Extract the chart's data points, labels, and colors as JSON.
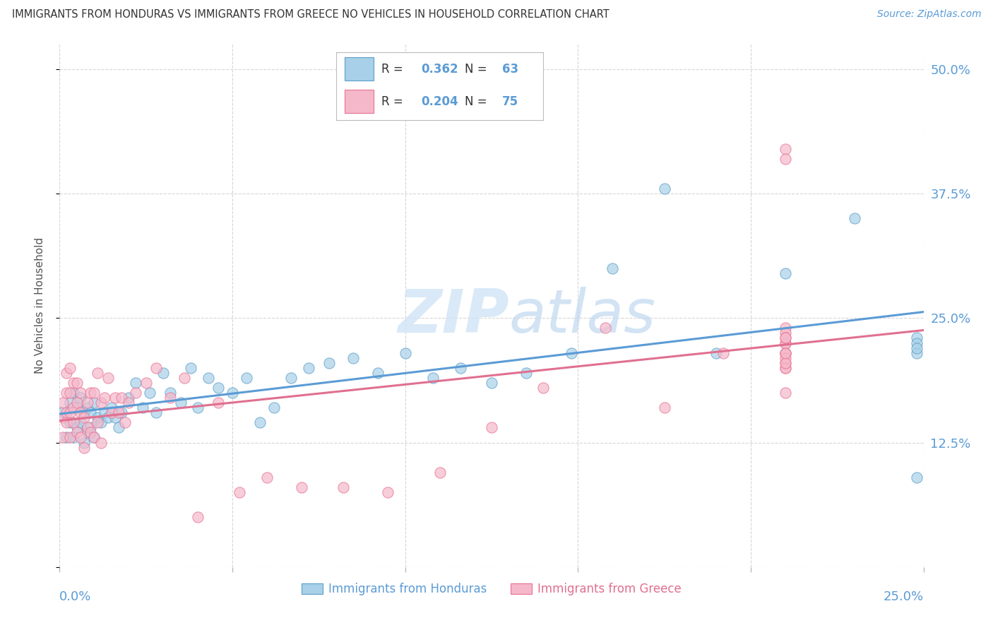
{
  "title": "IMMIGRANTS FROM HONDURAS VS IMMIGRANTS FROM GREECE NO VEHICLES IN HOUSEHOLD CORRELATION CHART",
  "source": "Source: ZipAtlas.com",
  "ylabel": "No Vehicles in Household",
  "ytick_vals": [
    0.125,
    0.25,
    0.375,
    0.5
  ],
  "ytick_labels": [
    "12.5%",
    "25.0%",
    "37.5%",
    "50.0%"
  ],
  "xlim": [
    0.0,
    0.25
  ],
  "ylim": [
    0.0,
    0.525
  ],
  "legend_r1": "R = ",
  "legend_v1": "0.362",
  "legend_n1": "N = ",
  "legend_nv1": "63",
  "legend_r2": "R = ",
  "legend_v2": "0.204",
  "legend_n2": "N = ",
  "legend_nv2": "75",
  "color_honduras": "#A8D0E8",
  "color_greece": "#F5B8CB",
  "color_honduras_edge": "#5A9EC8",
  "color_greece_edge": "#E87090",
  "color_honduras_line": "#5B9BD5",
  "color_greece_line": "#E07090",
  "color_blue_text": "#5B9BD5",
  "color_pink_text": "#E07090",
  "background_color": "#FFFFFF",
  "watermark_zip": "ZIP",
  "watermark_atlas": "atlas",
  "label_honduras": "Immigrants from Honduras",
  "label_greece": "Immigrants from Greece",
  "honduras_x": [
    0.001,
    0.002,
    0.003,
    0.003,
    0.004,
    0.004,
    0.005,
    0.005,
    0.006,
    0.006,
    0.007,
    0.007,
    0.008,
    0.008,
    0.009,
    0.009,
    0.01,
    0.01,
    0.011,
    0.012,
    0.013,
    0.014,
    0.015,
    0.016,
    0.017,
    0.018,
    0.02,
    0.022,
    0.024,
    0.026,
    0.028,
    0.03,
    0.032,
    0.035,
    0.038,
    0.04,
    0.043,
    0.046,
    0.05,
    0.054,
    0.058,
    0.062,
    0.067,
    0.072,
    0.078,
    0.085,
    0.092,
    0.1,
    0.108,
    0.116,
    0.125,
    0.135,
    0.148,
    0.16,
    0.175,
    0.19,
    0.21,
    0.23,
    0.248,
    0.248,
    0.248,
    0.248,
    0.248
  ],
  "honduras_y": [
    0.155,
    0.13,
    0.145,
    0.165,
    0.13,
    0.175,
    0.14,
    0.16,
    0.145,
    0.17,
    0.125,
    0.155,
    0.135,
    0.16,
    0.14,
    0.155,
    0.13,
    0.165,
    0.15,
    0.145,
    0.155,
    0.15,
    0.16,
    0.15,
    0.14,
    0.155,
    0.17,
    0.185,
    0.16,
    0.175,
    0.155,
    0.195,
    0.175,
    0.165,
    0.2,
    0.16,
    0.19,
    0.18,
    0.175,
    0.19,
    0.145,
    0.16,
    0.19,
    0.2,
    0.205,
    0.21,
    0.195,
    0.215,
    0.19,
    0.2,
    0.185,
    0.195,
    0.215,
    0.3,
    0.38,
    0.215,
    0.295,
    0.35,
    0.215,
    0.23,
    0.225,
    0.22,
    0.09
  ],
  "greece_x": [
    0.001,
    0.001,
    0.001,
    0.002,
    0.002,
    0.002,
    0.002,
    0.003,
    0.003,
    0.003,
    0.003,
    0.004,
    0.004,
    0.004,
    0.005,
    0.005,
    0.005,
    0.006,
    0.006,
    0.006,
    0.007,
    0.007,
    0.008,
    0.008,
    0.009,
    0.009,
    0.01,
    0.01,
    0.011,
    0.011,
    0.012,
    0.012,
    0.013,
    0.014,
    0.015,
    0.016,
    0.017,
    0.018,
    0.019,
    0.02,
    0.022,
    0.025,
    0.028,
    0.032,
    0.036,
    0.04,
    0.046,
    0.052,
    0.06,
    0.07,
    0.082,
    0.095,
    0.11,
    0.125,
    0.14,
    0.158,
    0.175,
    0.192,
    0.21,
    0.21,
    0.21,
    0.21,
    0.21,
    0.21,
    0.21,
    0.21,
    0.21,
    0.21,
    0.21,
    0.21,
    0.21,
    0.21,
    0.21,
    0.21,
    0.21
  ],
  "greece_y": [
    0.15,
    0.13,
    0.165,
    0.145,
    0.155,
    0.175,
    0.195,
    0.13,
    0.155,
    0.175,
    0.2,
    0.145,
    0.16,
    0.185,
    0.135,
    0.165,
    0.185,
    0.13,
    0.155,
    0.175,
    0.12,
    0.15,
    0.14,
    0.165,
    0.135,
    0.175,
    0.13,
    0.175,
    0.145,
    0.195,
    0.125,
    0.165,
    0.17,
    0.19,
    0.155,
    0.17,
    0.155,
    0.17,
    0.145,
    0.165,
    0.175,
    0.185,
    0.2,
    0.17,
    0.19,
    0.05,
    0.165,
    0.075,
    0.09,
    0.08,
    0.08,
    0.075,
    0.095,
    0.14,
    0.18,
    0.24,
    0.16,
    0.215,
    0.24,
    0.175,
    0.2,
    0.215,
    0.225,
    0.205,
    0.2,
    0.215,
    0.225,
    0.235,
    0.21,
    0.205,
    0.215,
    0.42,
    0.23,
    0.23,
    0.41
  ]
}
